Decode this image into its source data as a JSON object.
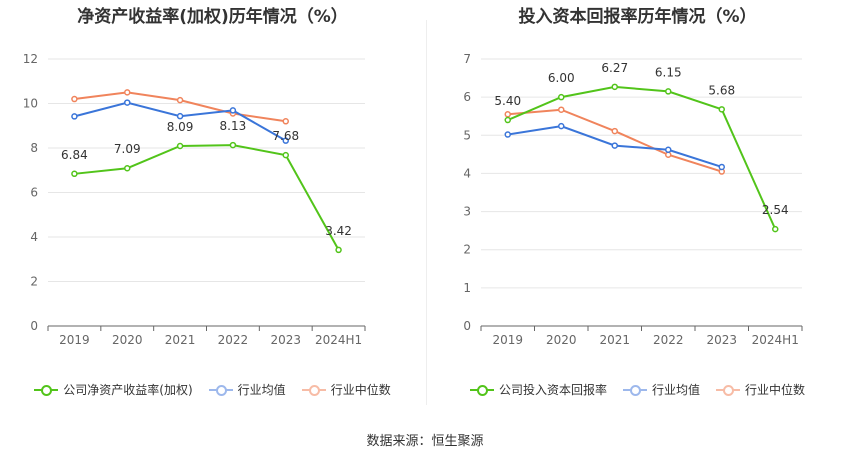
{
  "source_label": "数据来源：恒生聚源",
  "chart_data": [
    {
      "type": "line",
      "title": "净资产收益率(加权)历年情况（%）",
      "categories": [
        "2019",
        "2020",
        "2021",
        "2022",
        "2023",
        "2024H1"
      ],
      "ylim": [
        0,
        12
      ],
      "yticks": [
        0,
        2,
        4,
        6,
        8,
        10,
        12
      ],
      "grid": true,
      "legend_position": "bottom",
      "series": [
        {
          "name": "公司净资产收益率(加权)",
          "color": "#52c41a",
          "values": [
            6.84,
            7.09,
            8.09,
            8.13,
            7.68,
            3.42
          ],
          "labels": [
            "6.84",
            "7.09",
            "8.09",
            "8.13",
            "7.68",
            "3.42"
          ]
        },
        {
          "name": "行业均值",
          "color": "#3a75d9",
          "values": [
            9.42,
            10.04,
            9.43,
            9.69,
            8.33,
            null
          ]
        },
        {
          "name": "行业中位数",
          "color": "#f0845c",
          "values": [
            10.2,
            10.5,
            10.15,
            9.55,
            9.2,
            null
          ]
        }
      ]
    },
    {
      "type": "line",
      "title": "投入资本回报率历年情况（%）",
      "categories": [
        "2019",
        "2020",
        "2021",
        "2022",
        "2023",
        "2024H1"
      ],
      "ylim": [
        0,
        7
      ],
      "yticks": [
        0,
        1,
        2,
        3,
        4,
        5,
        6,
        7
      ],
      "grid": true,
      "legend_position": "bottom",
      "series": [
        {
          "name": "公司投入资本回报率",
          "color": "#52c41a",
          "values": [
            5.4,
            6.0,
            6.27,
            6.15,
            5.68,
            2.54
          ],
          "labels": [
            "5.40",
            "6.00",
            "6.27",
            "6.15",
            "5.68",
            "2.54"
          ]
        },
        {
          "name": "行业均值",
          "color": "#3a75d9",
          "values": [
            5.02,
            5.24,
            4.73,
            4.62,
            4.17,
            null
          ]
        },
        {
          "name": "行业中位数",
          "color": "#f0845c",
          "values": [
            5.55,
            5.67,
            5.11,
            4.49,
            4.05,
            null
          ]
        }
      ]
    }
  ]
}
